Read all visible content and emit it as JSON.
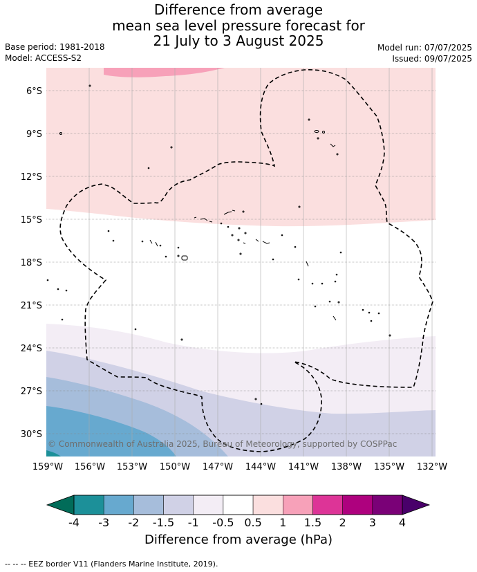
{
  "title": {
    "line1": "Difference from average",
    "line2": "mean sea level pressure forecast for",
    "line3": "21 July to 3 August 2025"
  },
  "meta": {
    "base_period": "Base period: 1981-2018",
    "model": "Model: ACCESS-S2",
    "model_run": "Model run: 07/07/2025",
    "issued": "Issued: 09/07/2025"
  },
  "map": {
    "lat_labels": [
      "6°S",
      "9°S",
      "12°S",
      "15°S",
      "18°S",
      "21°S",
      "24°S",
      "27°S",
      "30°S"
    ],
    "lon_labels": [
      "159°W",
      "156°W",
      "153°W",
      "150°W",
      "147°W",
      "144°W",
      "141°W",
      "138°W",
      "135°W",
      "132°W"
    ],
    "copyright": "© Commonwealth of Australia 2025, Bureau of Meteorology, supported by COSPPac",
    "colors": {
      "p1_1_5": "#f7a1b9",
      "p0_5_1": "#fbdfdf",
      "neutral": "#ffffff",
      "m0_5_1": "#f3edf5",
      "m1_1_5": "#d0d1e6",
      "m1_5_2": "#a6bddb",
      "m2_3": "#67a9cf",
      "m3_4": "#1c9099"
    }
  },
  "colorbar": {
    "ticks": [
      "-4",
      "-3",
      "-2",
      "-1.5",
      "-1",
      "-0.5",
      "0.5",
      "1",
      "1.5",
      "2",
      "3",
      "4"
    ],
    "colors": [
      "#1c9099",
      "#67a9cf",
      "#a6bddb",
      "#d0d1e6",
      "#f3edf5",
      "#ffffff",
      "#fbdfdf",
      "#f7a1b9",
      "#dd3497",
      "#ae017e",
      "#7a0177"
    ],
    "under_color": "#016c59",
    "over_color": "#49006a",
    "label": "Difference from average (hPa)"
  },
  "footer": "-- -- -- EEZ border V11 (Flanders Marine Institute, 2019)."
}
